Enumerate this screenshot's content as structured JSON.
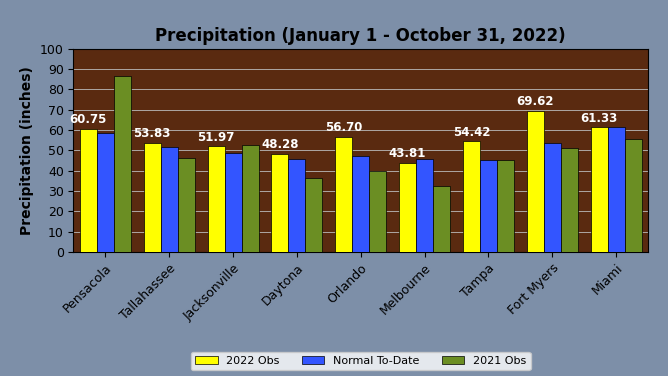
{
  "chart_data": {
    "type": "bar",
    "title": "Precipitation (January 1 - October 31, 2022)",
    "y_label": "Precipitation (inches)",
    "categories": [
      "Pensacola",
      "Tallahassee",
      "Jacksonville",
      "Daytona",
      "Orlando",
      "Melbourne",
      "Tampa",
      "Fort Myers",
      "Miami"
    ],
    "series": [
      {
        "name": "2022 Obs",
        "color": "#ffff00",
        "values": [
          60.75,
          53.83,
          51.97,
          48.28,
          56.7,
          43.81,
          54.42,
          69.62,
          61.33
        ],
        "value_labels": [
          "60.75",
          "53.83",
          "51.97",
          "48.28",
          "56.70",
          "43.81",
          "54.42",
          "69.62",
          "61.33"
        ]
      },
      {
        "name": "Normal To-Date",
        "color": "#3355ff",
        "values": [
          58.5,
          51.5,
          48.5,
          46,
          47,
          46,
          45.5,
          53.5,
          61.5
        ]
      },
      {
        "name": "2021 Obs",
        "color": "#6b8e23",
        "values": [
          86.5,
          46.5,
          52.5,
          36.5,
          40,
          32.5,
          45.5,
          51,
          55.5
        ]
      }
    ],
    "ylim": [
      0,
      100
    ],
    "yticks": [
      0,
      10,
      20,
      30,
      40,
      50,
      60,
      70,
      80,
      90,
      100
    ],
    "grid": true,
    "data_labels": true,
    "legend": "lower center"
  }
}
